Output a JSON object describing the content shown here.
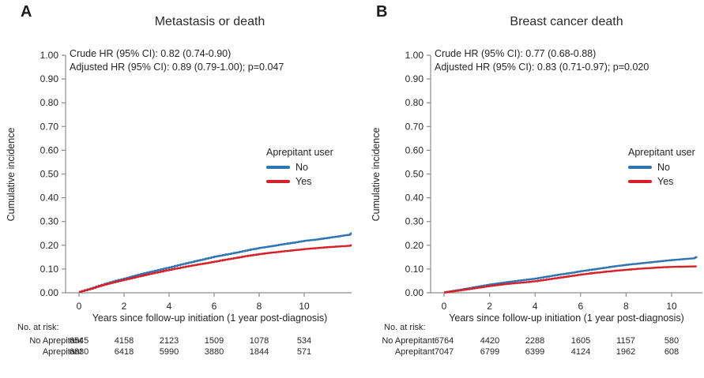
{
  "figure": {
    "background": "#ffffff",
    "axis_color": "#8c8c8c",
    "text_color": "#262626"
  },
  "chart_data": [
    {
      "type": "line",
      "panel_letter": "A",
      "title": "Metastasis or death",
      "annotation_lines": [
        "Crude HR (95% CI): 0.82 (0.74-0.90)",
        "Adjusted HR (95% CI): 0.89 (0.79-1.00); p=0.047"
      ],
      "xlabel": "Years since follow-up initiation (1 year post-diagnosis)",
      "ylabel": "Cumulative incidence",
      "xlim": [
        -0.6,
        12.2
      ],
      "ylim": [
        0,
        1.0
      ],
      "grid": false,
      "legend_position": "right-middle",
      "x_tick_values": [
        0,
        2,
        4,
        6,
        8,
        10
      ],
      "x_tick_labels": [
        "0",
        "2",
        "4",
        "6",
        "8",
        "10"
      ],
      "y_tick_values": [
        0,
        0.1,
        0.2,
        0.3,
        0.4,
        0.5,
        0.6,
        0.7,
        0.8,
        0.9,
        1.0
      ],
      "y_tick_labels": [
        "0.00",
        "0.10",
        "0.20",
        "0.30",
        "0.40",
        "0.50",
        "0.60",
        "0.70",
        "0.80",
        "0.90",
        "1.00"
      ],
      "legend": {
        "title": "Aprepitant user",
        "items": [
          {
            "label": "No",
            "color": "#2f75b2"
          },
          {
            "label": "Yes",
            "color": "#d62128"
          }
        ]
      },
      "series": [
        {
          "name": "No",
          "color": "#2f75b2",
          "x": [
            0,
            0.5,
            1,
            1.5,
            2,
            2.5,
            3,
            3.5,
            4,
            4.5,
            5,
            5.5,
            6,
            6.5,
            7,
            7.5,
            8,
            8.5,
            9,
            9.5,
            10,
            10.5,
            11,
            11.5,
            12,
            12.2
          ],
          "y": [
            0.004,
            0.018,
            0.034,
            0.048,
            0.06,
            0.073,
            0.085,
            0.096,
            0.107,
            0.119,
            0.13,
            0.141,
            0.152,
            0.161,
            0.17,
            0.18,
            0.189,
            0.196,
            0.204,
            0.211,
            0.219,
            0.224,
            0.231,
            0.238,
            0.245,
            0.258
          ]
        },
        {
          "name": "Yes",
          "color": "#d62128",
          "x": [
            0,
            0.5,
            1,
            1.5,
            2,
            2.5,
            3,
            3.5,
            4,
            4.5,
            5,
            5.5,
            6,
            6.5,
            7,
            7.5,
            8,
            8.5,
            9,
            9.5,
            10,
            10.5,
            11,
            11.5,
            12,
            12.2
          ],
          "y": [
            0.004,
            0.017,
            0.032,
            0.044,
            0.055,
            0.066,
            0.077,
            0.087,
            0.097,
            0.106,
            0.115,
            0.123,
            0.131,
            0.14,
            0.148,
            0.156,
            0.163,
            0.169,
            0.174,
            0.179,
            0.184,
            0.188,
            0.192,
            0.195,
            0.198,
            0.203
          ]
        }
      ],
      "risk_table": {
        "heading": "No. at risk:",
        "rows": [
          {
            "label": "No Aprepitant",
            "values": [
              6545,
              4158,
              2123,
              1509,
              1078,
              534
            ]
          },
          {
            "label": "Aprepitant",
            "values": [
              6830,
              6418,
              5990,
              3880,
              1844,
              571
            ]
          }
        ]
      }
    },
    {
      "type": "line",
      "panel_letter": "B",
      "title": "Breast cancer death",
      "annotation_lines": [
        "Crude HR (95% CI): 0.77 (0.68-0.88)",
        "Adjusted HR (95% CI): 0.83 (0.71-0.97); p=0.020"
      ],
      "xlabel": "Years since follow-up initiation (1 year post-diagnosis)",
      "ylabel": "Cumulative incidence",
      "xlim": [
        -0.6,
        11.4
      ],
      "ylim": [
        0,
        1.0
      ],
      "grid": false,
      "legend_position": "right-middle",
      "x_tick_values": [
        0,
        2,
        4,
        6,
        8,
        10
      ],
      "x_tick_labels": [
        "0",
        "2",
        "4",
        "6",
        "8",
        "10"
      ],
      "y_tick_values": [
        0,
        0.1,
        0.2,
        0.3,
        0.4,
        0.5,
        0.6,
        0.7,
        0.8,
        0.9,
        1.0
      ],
      "y_tick_labels": [
        "0.00",
        "0.10",
        "0.20",
        "0.30",
        "0.40",
        "0.50",
        "0.60",
        "0.70",
        "0.80",
        "0.90",
        "1.00"
      ],
      "legend": {
        "title": "Aprepitant user",
        "items": [
          {
            "label": "No",
            "color": "#2f75b2"
          },
          {
            "label": "Yes",
            "color": "#d62128"
          }
        ]
      },
      "series": [
        {
          "name": "No",
          "color": "#2f75b2",
          "x": [
            0,
            0.5,
            1,
            1.5,
            2,
            2.5,
            3,
            3.5,
            4,
            4.5,
            5,
            5.5,
            6,
            6.5,
            7,
            7.5,
            8,
            8.5,
            9,
            9.5,
            10,
            10.5,
            11,
            11.1
          ],
          "y": [
            0.002,
            0.01,
            0.018,
            0.027,
            0.035,
            0.042,
            0.048,
            0.054,
            0.06,
            0.068,
            0.076,
            0.083,
            0.091,
            0.098,
            0.105,
            0.112,
            0.118,
            0.123,
            0.128,
            0.133,
            0.138,
            0.142,
            0.146,
            0.152
          ]
        },
        {
          "name": "Yes",
          "color": "#d62128",
          "x": [
            0,
            0.5,
            1,
            1.5,
            2,
            2.5,
            3,
            3.5,
            4,
            4.5,
            5,
            5.5,
            6,
            6.5,
            7,
            7.5,
            8,
            8.5,
            9,
            9.5,
            10,
            10.5,
            11,
            11.1
          ],
          "y": [
            0.002,
            0.008,
            0.015,
            0.022,
            0.029,
            0.035,
            0.04,
            0.044,
            0.049,
            0.056,
            0.063,
            0.07,
            0.077,
            0.083,
            0.088,
            0.093,
            0.097,
            0.101,
            0.104,
            0.107,
            0.109,
            0.11,
            0.111,
            0.111
          ]
        }
      ],
      "risk_table": {
        "heading": "No. at risk:",
        "rows": [
          {
            "label": "No Aprepitant",
            "values": [
              6764,
              4420,
              2288,
              1605,
              1157,
              580
            ]
          },
          {
            "label": "Aprepitant",
            "values": [
              7047,
              6799,
              6399,
              4124,
              1962,
              608
            ]
          }
        ]
      }
    }
  ]
}
